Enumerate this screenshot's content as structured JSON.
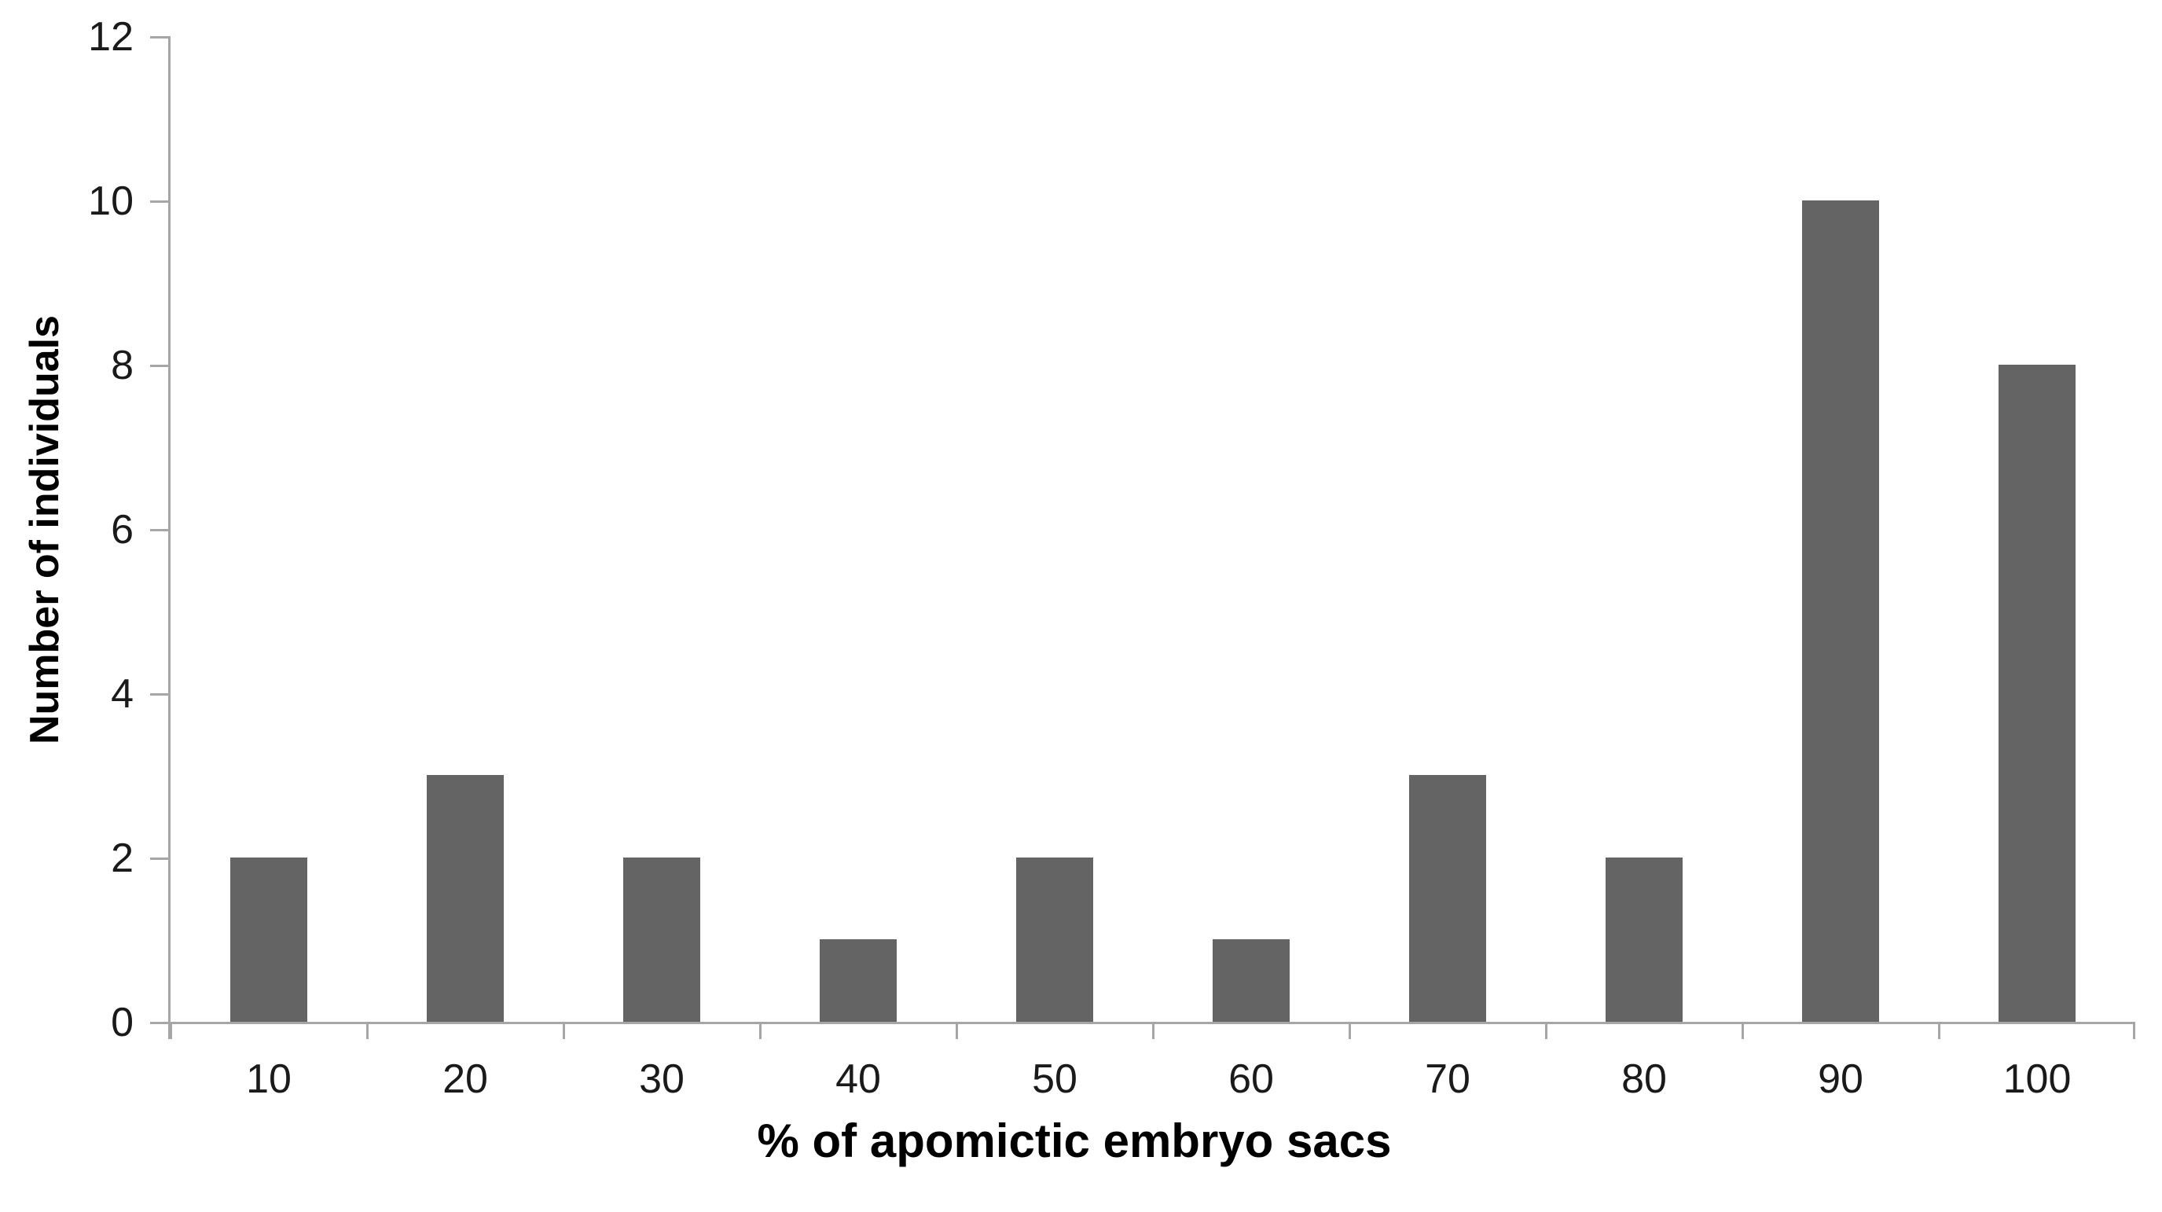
{
  "chart_data": {
    "type": "bar",
    "title": "",
    "categories": [
      "10",
      "20",
      "30",
      "40",
      "50",
      "60",
      "70",
      "80",
      "90",
      "100"
    ],
    "values": [
      2,
      3,
      2,
      1,
      2,
      1,
      3,
      2,
      10,
      8
    ],
    "xlabel": "% of apomictic embryo sacs",
    "ylabel": "Number of individuals",
    "ylim": [
      0,
      12
    ],
    "yticks": [
      0,
      2,
      4,
      6,
      8,
      10,
      12
    ],
    "grid": false,
    "legend": "none",
    "bar_color": "#646464",
    "axis_color": "#a6a6a6",
    "tick_label_color": "#1a1a1a",
    "title_color": "#000000",
    "background_color": "#ffffff"
  }
}
